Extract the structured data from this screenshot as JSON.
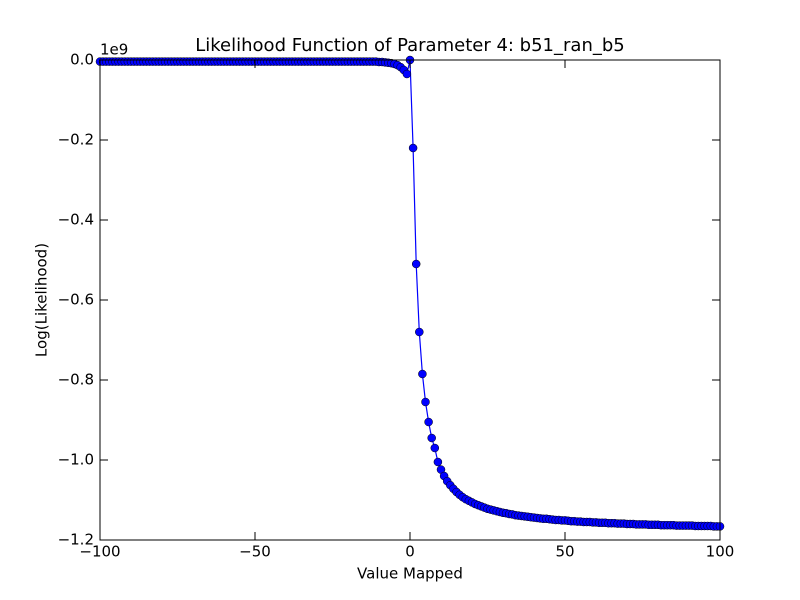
{
  "chart_data": {
    "type": "line",
    "title": "Likelihood Function of Parameter 4: b51_ran_b5",
    "xlabel": "Value Mapped",
    "ylabel": "Log(Likelihood)",
    "y_offset_label": "1e9",
    "xlim": [
      -100,
      100
    ],
    "ylim": [
      -1.2,
      0
    ],
    "xticks": [
      {
        "value": -100,
        "label": "−100"
      },
      {
        "value": -50,
        "label": "−50"
      },
      0,
      50,
      100
    ],
    "yticks": [
      {
        "value": 0,
        "label": "0.0"
      },
      {
        "value": -0.2,
        "label": "−0.2"
      },
      {
        "value": -0.4,
        "label": "−0.4"
      },
      {
        "value": -0.6,
        "label": "−0.6"
      },
      {
        "value": -0.8,
        "label": "−0.8"
      },
      {
        "value": -1.0,
        "label": "−1.0"
      },
      {
        "value": -1.2,
        "label": "−1.2"
      }
    ],
    "grid": false,
    "series": [
      {
        "color": "#0000ff",
        "x": [
          -100,
          -99,
          -98,
          -97,
          -96,
          -95,
          -94,
          -93,
          -92,
          -91,
          -90,
          -89,
          -88,
          -87,
          -86,
          -85,
          -84,
          -83,
          -82,
          -81,
          -80,
          -79,
          -78,
          -77,
          -76,
          -75,
          -74,
          -73,
          -72,
          -71,
          -70,
          -69,
          -68,
          -67,
          -66,
          -65,
          -64,
          -63,
          -62,
          -61,
          -60,
          -59,
          -58,
          -57,
          -56,
          -55,
          -54,
          -53,
          -52,
          -51,
          -50,
          -49,
          -48,
          -47,
          -46,
          -45,
          -44,
          -43,
          -42,
          -41,
          -40,
          -39,
          -38,
          -37,
          -36,
          -35,
          -34,
          -33,
          -32,
          -31,
          -30,
          -29,
          -28,
          -27,
          -26,
          -25,
          -24,
          -23,
          -22,
          -21,
          -20,
          -19,
          -18,
          -17,
          -16,
          -15,
          -14,
          -13,
          -12,
          -11,
          -10,
          -9,
          -8,
          -7,
          -6,
          -5,
          -4,
          -3,
          -2,
          -1,
          0,
          1,
          2,
          3,
          4,
          5,
          6,
          7,
          8,
          9,
          10,
          11,
          12,
          13,
          14,
          15,
          16,
          17,
          18,
          19,
          20,
          21,
          22,
          23,
          24,
          25,
          26,
          27,
          28,
          29,
          30,
          31,
          32,
          33,
          34,
          35,
          36,
          37,
          38,
          39,
          40,
          41,
          42,
          43,
          44,
          45,
          46,
          47,
          48,
          49,
          50,
          51,
          52,
          53,
          54,
          55,
          56,
          57,
          58,
          59,
          60,
          61,
          62,
          63,
          64,
          65,
          66,
          67,
          68,
          69,
          70,
          71,
          72,
          73,
          74,
          75,
          76,
          77,
          78,
          79,
          80,
          81,
          82,
          83,
          84,
          85,
          86,
          87,
          88,
          89,
          90,
          91,
          92,
          93,
          94,
          95,
          96,
          97,
          98,
          99,
          100
        ],
        "values": [
          -0.004,
          -0.004,
          -0.004,
          -0.004,
          -0.004,
          -0.004,
          -0.004,
          -0.004,
          -0.004,
          -0.004,
          -0.004,
          -0.004,
          -0.004,
          -0.004,
          -0.004,
          -0.004,
          -0.004,
          -0.004,
          -0.004,
          -0.004,
          -0.004,
          -0.004,
          -0.004,
          -0.004,
          -0.004,
          -0.004,
          -0.004,
          -0.004,
          -0.004,
          -0.004,
          -0.004,
          -0.004,
          -0.004,
          -0.004,
          -0.004,
          -0.004,
          -0.004,
          -0.004,
          -0.004,
          -0.004,
          -0.004,
          -0.004,
          -0.004,
          -0.004,
          -0.004,
          -0.004,
          -0.004,
          -0.004,
          -0.004,
          -0.004,
          -0.004,
          -0.004,
          -0.004,
          -0.004,
          -0.004,
          -0.004,
          -0.004,
          -0.004,
          -0.004,
          -0.004,
          -0.004,
          -0.004,
          -0.004,
          -0.004,
          -0.004,
          -0.004,
          -0.004,
          -0.004,
          -0.004,
          -0.004,
          -0.004,
          -0.004,
          -0.004,
          -0.004,
          -0.004,
          -0.004,
          -0.004,
          -0.004,
          -0.004,
          -0.004,
          -0.004,
          -0.004,
          -0.004,
          -0.004,
          -0.004,
          -0.004,
          -0.004,
          -0.004,
          -0.004,
          -0.004,
          -0.005,
          -0.005,
          -0.006,
          -0.007,
          -0.008,
          -0.01,
          -0.013,
          -0.018,
          -0.025,
          -0.035,
          0,
          -0.22,
          -0.51,
          -0.68,
          -0.785,
          -0.855,
          -0.905,
          -0.945,
          -0.97,
          -1.005,
          -1.024,
          -1.04,
          -1.053,
          -1.063,
          -1.072,
          -1.08,
          -1.087,
          -1.093,
          -1.098,
          -1.102,
          -1.106,
          -1.11,
          -1.113,
          -1.116,
          -1.119,
          -1.122,
          -1.124,
          -1.126,
          -1.128,
          -1.13,
          -1.132,
          -1.133,
          -1.135,
          -1.136,
          -1.138,
          -1.139,
          -1.14,
          -1.141,
          -1.142,
          -1.143,
          -1.144,
          -1.145,
          -1.146,
          -1.147,
          -1.147,
          -1.148,
          -1.149,
          -1.15,
          -1.15,
          -1.151,
          -1.151,
          -1.152,
          -1.153,
          -1.153,
          -1.154,
          -1.154,
          -1.155,
          -1.155,
          -1.155,
          -1.156,
          -1.156,
          -1.157,
          -1.157,
          -1.157,
          -1.158,
          -1.158,
          -1.158,
          -1.159,
          -1.159,
          -1.159,
          -1.16,
          -1.16,
          -1.16,
          -1.161,
          -1.161,
          -1.161,
          -1.161,
          -1.162,
          -1.162,
          -1.162,
          -1.162,
          -1.163,
          -1.163,
          -1.163,
          -1.163,
          -1.163,
          -1.164,
          -1.164,
          -1.164,
          -1.164,
          -1.164,
          -1.164,
          -1.165,
          -1.165,
          -1.165,
          -1.165,
          -1.165,
          -1.165,
          -1.166,
          -1.166,
          -1.166
        ]
      }
    ]
  }
}
